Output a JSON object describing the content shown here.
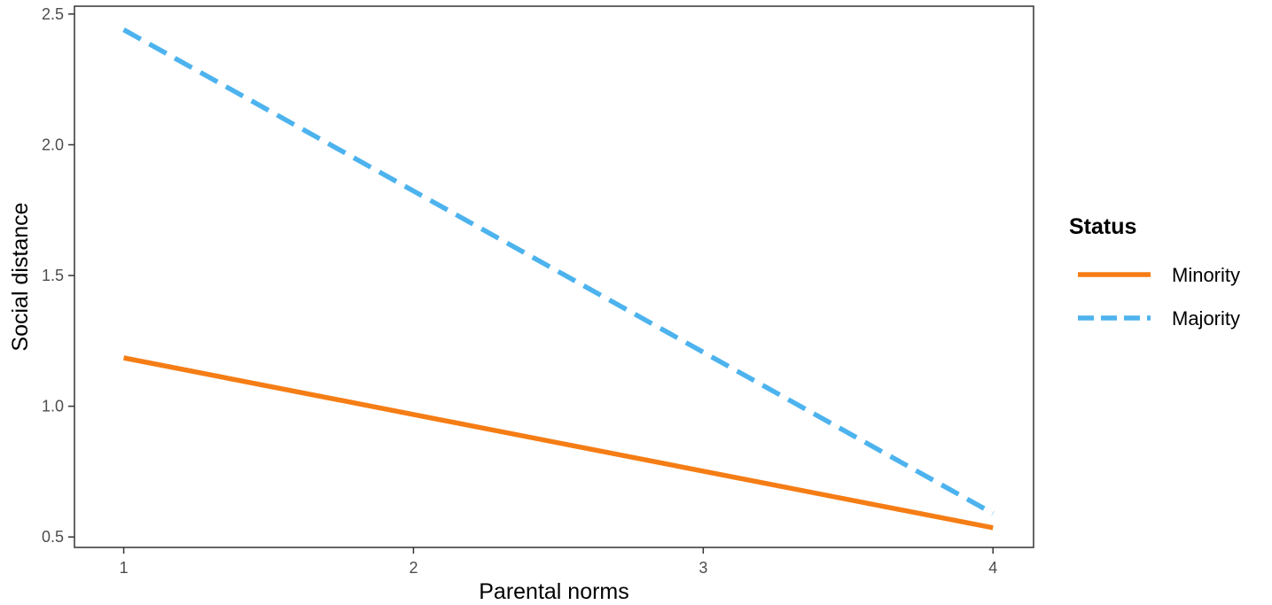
{
  "chart_data": {
    "type": "line",
    "xlabel": "Parental norms",
    "ylabel": "Social distance",
    "xlim": [
      0.83,
      4.14
    ],
    "ylim": [
      0.46,
      2.53
    ],
    "x_ticks": [
      "1",
      "2",
      "3",
      "4"
    ],
    "y_ticks": [
      "0.5",
      "1.0",
      "1.5",
      "2.0",
      "2.5"
    ],
    "grid": false,
    "legend": {
      "title": "Status",
      "position": "right"
    },
    "series": [
      {
        "name": "Minority",
        "x": [
          1,
          4
        ],
        "y": [
          1.185,
          0.535
        ],
        "color": "#F57D15",
        "line_style": "solid"
      },
      {
        "name": "Majority",
        "x": [
          1,
          4
        ],
        "y": [
          2.44,
          0.59
        ],
        "color": "#4DB3EE",
        "line_style": "dashed"
      }
    ]
  }
}
